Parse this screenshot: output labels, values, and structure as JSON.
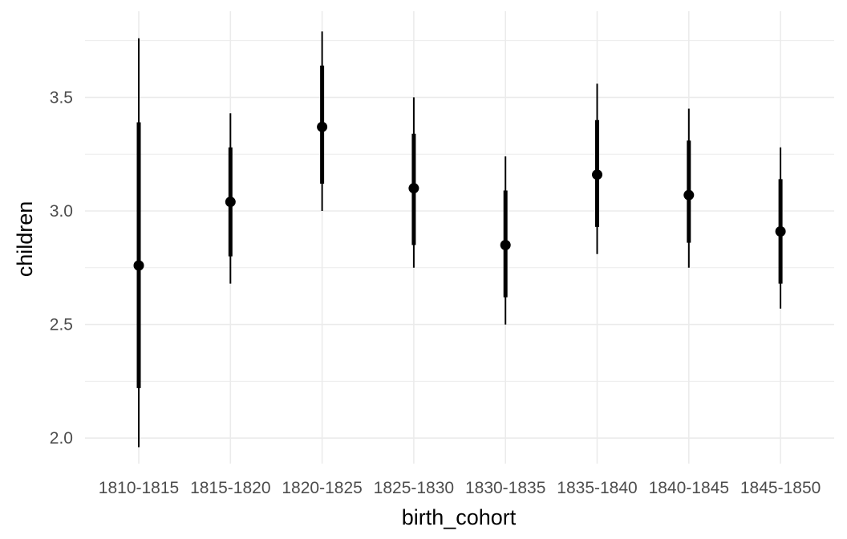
{
  "chart_data": {
    "type": "pointrange",
    "title": "",
    "xlabel": "birth_cohort",
    "ylabel": "children",
    "categories": [
      "1810-1815",
      "1815-1820",
      "1820-1825",
      "1825-1830",
      "1830-1835",
      "1835-1840",
      "1840-1845",
      "1845-1850"
    ],
    "ylim": [
      1.9,
      3.8
    ],
    "yticks": [
      2.0,
      2.5,
      3.0,
      3.5
    ],
    "ytick_labels": [
      "2.0",
      "2.5",
      "3.0",
      "3.5"
    ],
    "grid": true,
    "legend": "none",
    "series": [
      {
        "estimate": [
          2.76,
          3.04,
          3.37,
          3.1,
          2.85,
          3.16,
          3.07,
          2.91
        ],
        "inner_low": [
          2.22,
          2.8,
          3.12,
          2.85,
          2.62,
          2.93,
          2.86,
          2.68
        ],
        "inner_high": [
          3.39,
          3.28,
          3.64,
          3.34,
          3.09,
          3.4,
          3.31,
          3.14
        ],
        "outer_low": [
          1.96,
          2.68,
          3.0,
          2.75,
          2.5,
          2.81,
          2.75,
          2.57
        ],
        "outer_high": [
          3.76,
          3.43,
          3.79,
          3.5,
          3.24,
          3.56,
          3.45,
          3.28
        ]
      }
    ],
    "colors": {
      "marks": "#000000",
      "grid": "#ebebeb",
      "tick_text": "#4d4d4d"
    }
  }
}
